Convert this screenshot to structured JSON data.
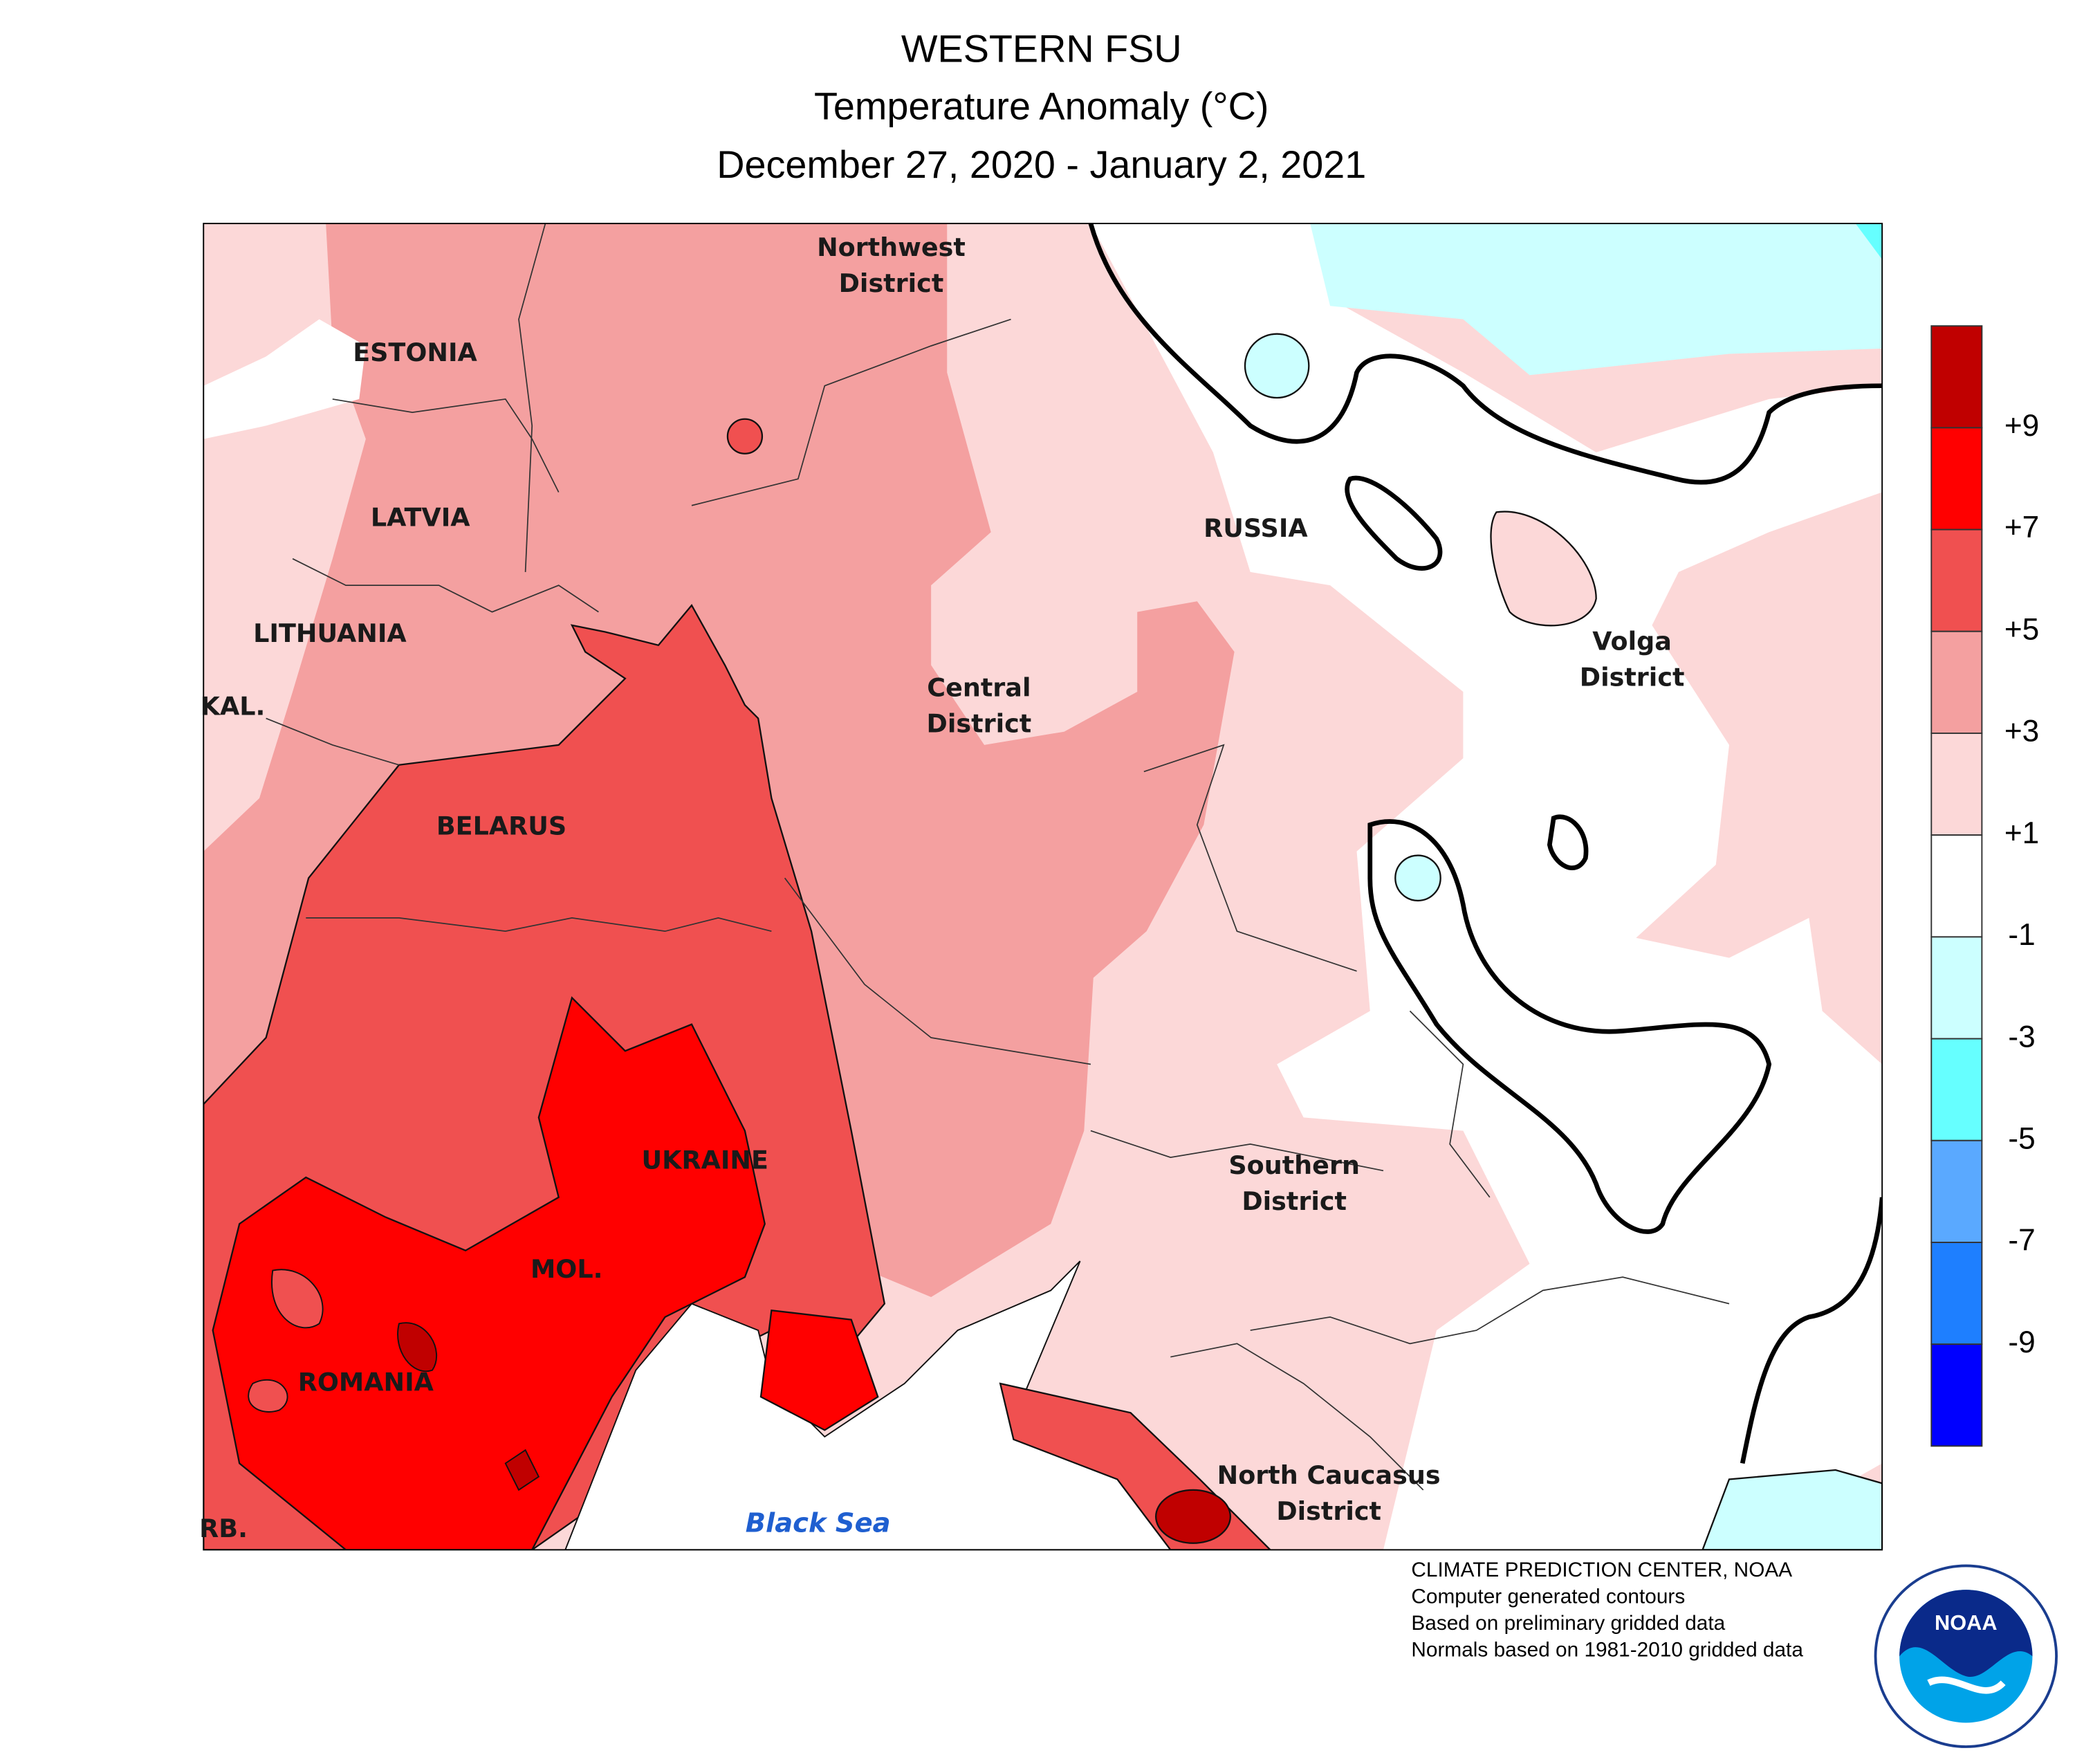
{
  "header": {
    "title": "WESTERN FSU",
    "subtitle": "Temperature Anomaly (°C)",
    "dates": "December 27, 2020 - January 2, 2021"
  },
  "map": {
    "labels": [
      {
        "lines": [
          "ESTONIA"
        ]
      },
      {
        "lines": [
          "LATVIA"
        ]
      },
      {
        "lines": [
          "LITHUANIA"
        ]
      },
      {
        "lines": [
          "KAL."
        ]
      },
      {
        "lines": [
          "BELARUS"
        ]
      },
      {
        "lines": [
          "UKRAINE"
        ]
      },
      {
        "lines": [
          "MOL."
        ]
      },
      {
        "lines": [
          "ROMANIA"
        ]
      },
      {
        "lines": [
          "RB."
        ]
      },
      {
        "lines": [
          "RUSSIA"
        ]
      },
      {
        "lines": [
          "Northwest",
          "District"
        ]
      },
      {
        "lines": [
          "Central",
          "District"
        ]
      },
      {
        "lines": [
          "Volga",
          "District"
        ]
      },
      {
        "lines": [
          "Southern",
          "District"
        ]
      },
      {
        "lines": [
          "North Caucasus",
          "District"
        ]
      },
      {
        "lines": [
          "Black Sea"
        ]
      }
    ]
  },
  "legend": {
    "colors": [
      "#c00000",
      "#ff0000",
      "#f05050",
      "#f4a0a0",
      "#fcd8d8",
      "#ffffff",
      "#ccffff",
      "#66ffff",
      "#5aa9ff",
      "#1e7fff",
      "#0000ff"
    ],
    "labels": [
      "+9",
      "+7",
      "+5",
      "+3",
      "+1",
      "-1",
      "-3",
      "-5",
      "-7",
      "-9"
    ]
  },
  "footer": {
    "lines": [
      "CLIMATE PREDICTION CENTER, NOAA",
      "Computer generated contours",
      "Based on preliminary gridded data",
      "Normals based on 1981-2010 gridded data"
    ]
  },
  "logo": {
    "text": "NOAA"
  }
}
